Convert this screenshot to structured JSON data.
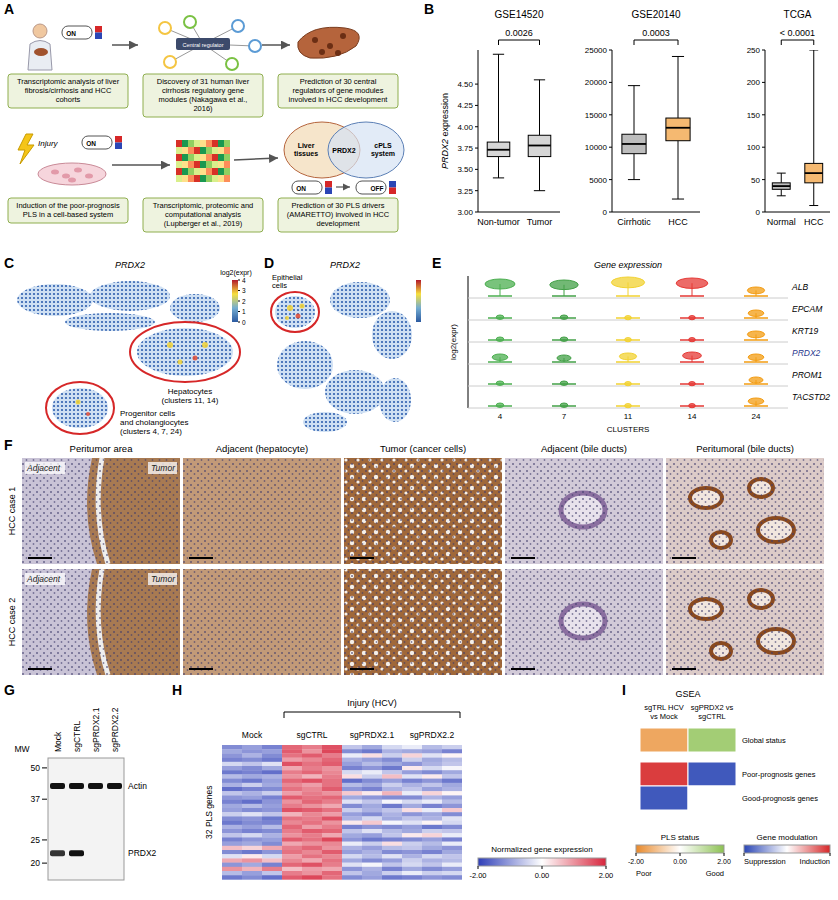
{
  "panel_letters": [
    "A",
    "B",
    "C",
    "D",
    "E",
    "F",
    "G",
    "H",
    "I"
  ],
  "a_diagram": {
    "top_steps": [
      "Transcriptomic analysis of liver fibrosis/cirrhosis and HCC cohorts",
      "Discovery of 31 human liver cirrhosis regulatory gene modules (Nakagawa et al., 2016)",
      "Prediction of 30 central regulators of gene modules involved in HCC development"
    ],
    "bottom_steps": [
      "Induction of the poor-prognosis PLS in a cell-based system",
      "Transcriptomic, proteomic and computational analysis (Lupberger et al., 2019)",
      "Prediction of 30 PLS drivers (AMARETTO) involved in HCC development"
    ],
    "on_label": "ON",
    "off_label": "OFF",
    "injury_label": "Injury",
    "central_regulator": "Central regulator",
    "venn": [
      "Liver tissues",
      "PRDX2",
      "cPLS system"
    ]
  },
  "chart_data": [
    {
      "type": "box",
      "title": "GSE14520",
      "y_label": "PRDX2 expression",
      "categories": [
        "Non-tumor",
        "Tumor"
      ],
      "colors": [
        "#d6d6d6",
        "#d6d6d6"
      ],
      "ylim": [
        3.0,
        4.9
      ],
      "yticks": [
        {
          "value": 3.0,
          "label": "3.00"
        },
        {
          "value": 3.25,
          "label": "3.25"
        },
        {
          "value": 3.5,
          "label": "3.50"
        },
        {
          "value": 3.75,
          "label": "3.75"
        },
        {
          "value": 4.0,
          "label": "4.00"
        },
        {
          "value": 4.25,
          "label": "4.25"
        },
        {
          "value": 4.5,
          "label": "4.50"
        }
      ],
      "boxes": [
        {
          "min": 3.4,
          "q1": 3.65,
          "median": 3.73,
          "q3": 3.82,
          "max": 4.85
        },
        {
          "min": 3.25,
          "q1": 3.65,
          "median": 3.78,
          "q3": 3.9,
          "max": 4.55
        }
      ],
      "annotation": "0.0026"
    },
    {
      "type": "box",
      "title": "GSE20140",
      "categories": [
        "Cirrhotic",
        "HCC"
      ],
      "colors": [
        "#bdbdbd",
        "#f5b971"
      ],
      "ylim": [
        0,
        25000
      ],
      "yticks": [
        0,
        5000,
        10000,
        15000,
        20000,
        25000
      ],
      "boxes": [
        {
          "min": 5000,
          "q1": 9000,
          "median": 10500,
          "q3": 12000,
          "max": 19500
        },
        {
          "min": 2000,
          "q1": 11000,
          "median": 13000,
          "q3": 14500,
          "max": 24000
        }
      ],
      "annotation": "0.0003"
    },
    {
      "type": "box",
      "title": "TCGA",
      "categories": [
        "Normal",
        "HCC"
      ],
      "colors": [
        "#bdbdbd",
        "#f5b971"
      ],
      "ylim": [
        0,
        250
      ],
      "yticks": [
        0,
        50,
        100,
        150,
        200,
        250
      ],
      "boxes": [
        {
          "min": 25,
          "q1": 35,
          "median": 40,
          "q3": 45,
          "max": 60
        },
        {
          "min": 10,
          "q1": 45,
          "median": 60,
          "q3": 75,
          "max": 250
        }
      ],
      "annotation": "< 0.0001"
    }
  ],
  "c_tsne": {
    "gene": "PRDX2",
    "colorbar_label": "log2(expr)",
    "colorbar_range": [
      0,
      4
    ],
    "colorbar_ticks": [
      0,
      1,
      2,
      3,
      4
    ],
    "annotations": [
      [
        "Hepatocytes",
        "(clusters 11, 14)"
      ],
      [
        "Progenitor cells",
        "and cholangiocytes",
        "(clusters 4, 7, 24)"
      ]
    ]
  },
  "d_tsne": {
    "gene": "PRDX2",
    "annotation": [
      "Epithelial",
      "cells"
    ]
  },
  "e_violin": {
    "title": "Gene expression",
    "genes": [
      "ALB",
      "EPCAM",
      "KRT19",
      "PRDX2",
      "PROM1",
      "TACSTD2"
    ],
    "highlight": "PRDX2",
    "clusters": [
      4,
      7,
      11,
      14,
      24
    ],
    "colors": [
      "#4caf50",
      "#43a047",
      "#f2d231",
      "#e53935",
      "#f39c12"
    ],
    "y_label": "log2(expr)",
    "x_label": "CLUSTERS",
    "levels": [
      [
        0.75,
        0.7,
        0.85,
        0.8,
        0.35
      ],
      [
        0.05,
        0.05,
        0.02,
        0.02,
        0.3
      ],
      [
        0.05,
        0.05,
        0.02,
        0.02,
        0.35
      ],
      [
        0.3,
        0.25,
        0.35,
        0.4,
        0.3
      ],
      [
        0.05,
        0.05,
        0.02,
        0.02,
        0.25
      ],
      [
        0.05,
        0.05,
        0.02,
        0.02,
        0.3
      ]
    ]
  },
  "f_histology": {
    "columns": [
      "Peritumor area",
      "Adjacent (hepatocyte)",
      "Tumor (cancer cells)",
      "Adjacent (bile ducts)",
      "Peritumoral (bile ducts)"
    ],
    "rows": [
      "HCC case 1",
      "HCC case 2"
    ],
    "inset_labels": [
      "Adjacent",
      "Tumor"
    ]
  },
  "g_blot": {
    "mw_label": "MW",
    "mw_lim": [
      55,
      17
    ],
    "mw_ticks": [
      50,
      37,
      25,
      20
    ],
    "lanes": [
      "Mock",
      "sgCTRL",
      "sgPRDX2.1",
      "sgPRDX2.2"
    ],
    "bands": [
      {
        "label": "Actin",
        "mw": 42,
        "intensity": [
          1,
          1,
          1,
          1
        ]
      },
      {
        "label": "PRDX2",
        "mw": 22,
        "intensity": [
          0.85,
          1,
          0,
          0
        ]
      }
    ]
  },
  "h_heatmap": {
    "group_header": "Injury (HCV)",
    "groups": [
      "Mock",
      "sgCTRL",
      "sgPRDX2.1",
      "sgPRDX2.2"
    ],
    "row_label": "32 PLS genes",
    "colorbar_label": "Normalized gene expression",
    "colorbar_range": [
      -2,
      2
    ],
    "colorbar_ticks": [
      {
        "value": -2,
        "label": "-2.00"
      },
      {
        "value": 0,
        "label": "0.00"
      },
      {
        "value": 2,
        "label": "2.00"
      }
    ],
    "colors": [
      "#2f3fb8",
      "#ffffff",
      "#d7263d"
    ],
    "cells": [
      [
        -1.2,
        -1.0,
        -1.3,
        1.4,
        1.2,
        1.6,
        -0.6,
        -0.9,
        -0.4,
        -0.2,
        -0.7,
        -0.5
      ],
      [
        -0.9,
        -1.1,
        -1.0,
        1.5,
        1.0,
        1.7,
        -1.2,
        -1.4,
        -0.8,
        -0.9,
        -1.0,
        -1.3
      ],
      [
        -1.1,
        -0.8,
        -1.2,
        1.3,
        1.5,
        1.2,
        -0.2,
        0.3,
        -0.5,
        0.4,
        -0.3,
        0.1
      ],
      [
        -1.3,
        -1.2,
        -1.4,
        0.9,
        1.1,
        1.4,
        -0.8,
        -1.0,
        -1.2,
        -0.5,
        -0.9,
        -0.7
      ],
      [
        -0.4,
        -0.6,
        -0.3,
        1.6,
        1.3,
        1.5,
        -1.0,
        -0.7,
        -0.9,
        -1.1,
        -0.8,
        -0.6
      ],
      [
        -1.0,
        -1.2,
        -0.9,
        0.8,
        1.2,
        1.0,
        -1.3,
        -1.1,
        -1.4,
        0.2,
        -0.4,
        -0.1
      ],
      [
        -1.4,
        -1.3,
        -1.5,
        1.2,
        1.4,
        1.1,
        -0.4,
        -0.2,
        -0.6,
        -1.0,
        -1.2,
        -0.9
      ],
      [
        -0.7,
        -0.9,
        -0.8,
        1.0,
        0.7,
        1.2,
        0.3,
        -0.5,
        0.6,
        -0.3,
        0.2,
        -0.6
      ],
      [
        -1.2,
        -1.4,
        -1.0,
        1.4,
        1.6,
        1.3,
        -1.5,
        -1.2,
        -1.0,
        -1.3,
        -1.1,
        -1.4
      ],
      [
        -0.8,
        -0.5,
        -0.9,
        1.1,
        0.9,
        1.3,
        -0.7,
        -0.9,
        -0.5,
        -0.8,
        -0.6,
        -0.9
      ],
      [
        -1.5,
        -1.3,
        -1.2,
        1.3,
        1.1,
        1.5,
        -1.1,
        -1.3,
        -0.8,
        -0.6,
        -1.0,
        -0.8
      ],
      [
        -0.6,
        -0.8,
        -0.5,
        0.9,
        1.2,
        1.0,
        0.5,
        0.2,
        0.7,
        -0.2,
        0.4,
        0.1
      ],
      [
        -1.1,
        -1.0,
        -1.3,
        1.5,
        1.3,
        1.4,
        -0.9,
        -1.1,
        -1.2,
        -1.2,
        -0.8,
        -1.0
      ],
      [
        -1.3,
        -1.5,
        -1.1,
        1.0,
        1.4,
        1.2,
        -0.3,
        -0.6,
        -0.1,
        -0.4,
        -0.2,
        -0.7
      ],
      [
        -0.9,
        -0.7,
        -1.0,
        1.2,
        1.0,
        0.8,
        -1.2,
        -0.9,
        -1.4,
        -0.9,
        -1.3,
        -1.1
      ],
      [
        -1.0,
        -1.2,
        -1.1,
        1.6,
        1.5,
        1.3,
        -0.5,
        -0.8,
        -0.6,
        0.3,
        -0.2,
        0.5
      ],
      [
        -0.5,
        -0.3,
        -0.6,
        0.7,
        1.1,
        0.9,
        -1.0,
        -1.2,
        -0.8,
        -1.1,
        -0.9,
        -1.2
      ],
      [
        -1.2,
        -1.1,
        -1.4,
        1.3,
        1.2,
        1.6,
        -0.8,
        -0.4,
        -0.9,
        -0.6,
        -0.8,
        -0.3
      ],
      [
        -1.4,
        -1.2,
        -1.3,
        1.1,
        1.3,
        1.0,
        0.2,
        0.5,
        -0.1,
        -0.3,
        0.1,
        -0.4
      ],
      [
        -0.8,
        -1.0,
        -0.7,
        1.4,
        0.9,
        1.2,
        -1.3,
        -1.1,
        -1.2,
        -1.0,
        -1.4,
        -1.2
      ],
      [
        -1.1,
        -1.3,
        -1.2,
        1.2,
        1.5,
        1.4,
        -0.6,
        -0.3,
        -0.7,
        -0.9,
        -0.5,
        -0.6
      ],
      [
        -0.6,
        -0.4,
        -0.8,
        1.0,
        1.2,
        0.8,
        -0.9,
        -1.0,
        -0.6,
        0.2,
        0.4,
        -0.2
      ],
      [
        -1.3,
        -1.1,
        -1.0,
        1.5,
        1.3,
        1.7,
        -1.1,
        -1.4,
        -1.3,
        -1.2,
        -1.0,
        -1.3
      ],
      [
        -1.0,
        -0.9,
        -1.2,
        0.8,
        1.0,
        1.1,
        -0.2,
        -0.5,
        0.3,
        -0.5,
        -0.7,
        -0.2
      ],
      [
        0.6,
        0.4,
        0.8,
        1.2,
        1.4,
        1.0,
        -0.8,
        -1.0,
        -0.7,
        -0.6,
        -0.9,
        -1.1
      ],
      [
        -1.2,
        -1.4,
        -1.1,
        1.3,
        1.1,
        1.5,
        -1.0,
        -0.8,
        -1.2,
        -1.1,
        -1.3,
        -0.9
      ],
      [
        -0.3,
        0.2,
        -0.4,
        0.9,
        1.3,
        1.1,
        -0.4,
        -0.7,
        -0.3,
        -0.8,
        -0.4,
        -0.6
      ],
      [
        0.8,
        1.0,
        0.6,
        1.1,
        0.8,
        1.3,
        -0.9,
        -1.2,
        -1.0,
        -0.5,
        -0.8,
        -0.7
      ],
      [
        -1.1,
        -0.9,
        -1.3,
        1.4,
        1.6,
        1.2,
        -0.3,
        -0.1,
        -0.6,
        -0.4,
        -0.6,
        -0.2
      ],
      [
        1.0,
        0.7,
        1.2,
        0.6,
        0.9,
        0.8,
        -1.1,
        -0.8,
        -1.3,
        -0.9,
        -1.2,
        -1.0
      ],
      [
        -0.7,
        -1.0,
        -0.6,
        1.2,
        1.0,
        1.4,
        -0.6,
        -0.9,
        -0.5,
        -0.2,
        -0.5,
        -0.4
      ],
      [
        -1.4,
        -1.2,
        -1.5,
        1.5,
        1.7,
        1.3,
        -1.2,
        -1.0,
        -1.4,
        -1.3,
        -1.1,
        -1.2
      ]
    ]
  },
  "i_gsea": {
    "title": "GSEA",
    "columns": [
      "sgTRL HCV vs Mock",
      "sgPRDX2 vs sgCTRL"
    ],
    "row_labels": [
      "Global status",
      "Poor-prognosis genes",
      "Good-prognosis genes"
    ],
    "pls_status": [
      -1.5,
      1.6
    ],
    "modulation": [
      [
        1.8,
        -1.8
      ],
      [
        -1.8,
        null
      ]
    ],
    "pls_legend": {
      "title": "PLS status",
      "range": [
        -2,
        2
      ],
      "ticks": [
        {
          "value": -2,
          "label": "-2.00"
        },
        {
          "value": 0,
          "label": "0.00"
        },
        {
          "value": 2,
          "label": "2.00"
        }
      ],
      "low": "Poor",
      "high": "Good",
      "colors": [
        "#e8892b",
        "#ffffff",
        "#8cc152"
      ]
    },
    "modulation_legend": {
      "title": "Gene modulation",
      "range": [
        -2,
        2
      ],
      "low": "Suppression",
      "high": "Induction",
      "colors": [
        "#2b46b5",
        "#ffffff",
        "#d62728"
      ]
    }
  }
}
